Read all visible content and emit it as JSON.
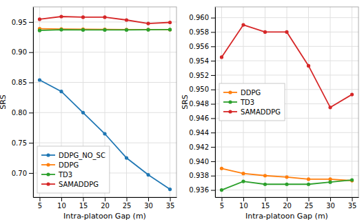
{
  "chart_data": [
    {
      "type": "line",
      "xlabel": "Intra-platoon Gap (m)",
      "ylabel": "SRS",
      "x": [
        5,
        10,
        15,
        20,
        25,
        30,
        35
      ],
      "series": [
        {
          "name": "DDPG_NO_SC",
          "color": "#1f77b4",
          "marker": "circle",
          "values": [
            0.854,
            0.835,
            0.8,
            0.765,
            0.725,
            0.697,
            0.673
          ]
        },
        {
          "name": "DDPG",
          "color": "#ff7f0e",
          "marker": "circle",
          "values": [
            0.939,
            0.9383,
            0.938,
            0.9378,
            0.9375,
            0.9375,
            0.9373
          ]
        },
        {
          "name": "TD3",
          "color": "#2ca02c",
          "marker": "circle",
          "values": [
            0.936,
            0.9372,
            0.9368,
            0.9368,
            0.9368,
            0.9371,
            0.9374
          ]
        },
        {
          "name": "SAMADDPG",
          "color": "#d62728",
          "marker": "circle",
          "values": [
            0.9545,
            0.959,
            0.958,
            0.958,
            0.9533,
            0.9475,
            0.9493
          ]
        }
      ],
      "xlim": [
        3.5,
        36.5
      ],
      "xticks": [
        5,
        10,
        15,
        20,
        25,
        30,
        35
      ],
      "ylim": [
        0.66,
        0.975
      ],
      "yticks": [
        {
          "value": 0.7,
          "label": "0.70"
        },
        0.75,
        {
          "value": 0.8,
          "label": "0.80"
        },
        0.85,
        {
          "value": 0.9,
          "label": "0.90"
        },
        0.95
      ],
      "grid": true,
      "legend": "lower left"
    },
    {
      "type": "line",
      "xlabel": "Intra-platoon Gap (m)",
      "ylabel": "SRS",
      "x": [
        5,
        10,
        15,
        20,
        25,
        30,
        35
      ],
      "series": [
        {
          "name": "DDPG",
          "color": "#ff7f0e",
          "marker": "circle",
          "values": [
            0.939,
            0.9383,
            0.938,
            0.9378,
            0.9375,
            0.9375,
            0.9373
          ]
        },
        {
          "name": "TD3",
          "color": "#2ca02c",
          "marker": "circle",
          "values": [
            0.936,
            0.9372,
            0.9368,
            0.9368,
            0.9368,
            0.9371,
            0.9374
          ]
        },
        {
          "name": "SAMADDPG",
          "color": "#d62728",
          "marker": "circle",
          "values": [
            0.9545,
            0.959,
            0.958,
            0.958,
            0.9533,
            0.9475,
            0.9493
          ]
        }
      ],
      "xlim": [
        3.5,
        36.5
      ],
      "xticks": [
        5,
        10,
        15,
        20,
        25,
        30,
        35
      ],
      "ylim": [
        0.935,
        0.9615
      ],
      "yticks": [
        0.936,
        0.938,
        {
          "value": 0.94,
          "label": "0.940"
        },
        0.942,
        0.944,
        0.946,
        0.948,
        {
          "value": 0.95,
          "label": "0.950"
        },
        0.952,
        0.954,
        0.956,
        0.958,
        {
          "value": 0.96,
          "label": "0.960"
        }
      ],
      "grid": true,
      "legend": "center left"
    }
  ]
}
